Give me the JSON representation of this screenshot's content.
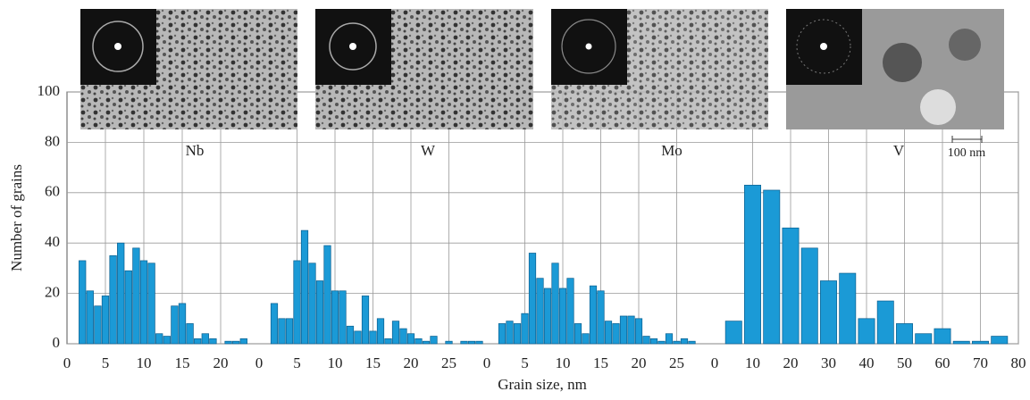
{
  "chart_data": [
    {
      "type": "histogram",
      "title": "Nb",
      "ylabel": "Number of grains",
      "xlabel": "Grain size, nm",
      "color": "#1b9ad6",
      "bins": [
        1.5,
        2.5,
        3.5,
        4.5,
        5.5,
        6.5,
        7.5,
        8.5,
        9.5,
        10.5,
        11.5,
        12.5,
        13.5,
        14.5,
        15.5,
        16.5,
        17.5,
        18.5,
        19.5,
        20.5,
        21.5,
        22.5,
        23.5
      ],
      "values": [
        33,
        21,
        15,
        19,
        35,
        40,
        29,
        38,
        33,
        32,
        4,
        3,
        15,
        16,
        8,
        2,
        4,
        2,
        0,
        1,
        1,
        2
      ],
      "xlim": [
        0,
        25
      ],
      "xticks": [
        0,
        5,
        10,
        15,
        20
      ],
      "ylim": [
        0,
        100
      ],
      "yticks": [
        0,
        20,
        40,
        60,
        80,
        100
      ],
      "grid": true
    },
    {
      "type": "histogram",
      "title": "W",
      "color": "#1b9ad6",
      "bins": [
        1.5,
        2.5,
        3.5,
        4.5,
        5.5,
        6.5,
        7.5,
        8.5,
        9.5,
        10.5,
        11.5,
        12.5,
        13.5,
        14.5,
        15.5,
        16.5,
        17.5,
        18.5,
        19.5,
        20.5,
        21.5,
        22.5,
        23.5,
        24.5,
        25.5,
        26.5,
        27.5,
        28.5,
        29.5
      ],
      "values": [
        16,
        10,
        10,
        33,
        45,
        32,
        25,
        39,
        21,
        21,
        7,
        5,
        19,
        5,
        10,
        2,
        9,
        6,
        4,
        2,
        1,
        3,
        0,
        1,
        0,
        1,
        1,
        1
      ],
      "xlim": [
        0,
        30
      ],
      "xticks": [
        0,
        5,
        10,
        15,
        20,
        25
      ],
      "ylim": [
        0,
        100
      ],
      "yticks": [
        0,
        20,
        40,
        60,
        80,
        100
      ],
      "grid": true
    },
    {
      "type": "histogram",
      "title": "Mo",
      "color": "#1b9ad6",
      "bins": [
        1.5,
        2.5,
        3.5,
        4.5,
        5.5,
        6.5,
        7.5,
        8.5,
        9.5,
        10.5,
        11.5,
        12.5,
        13.5,
        14.5,
        15.5,
        16.5,
        17.5,
        18.5,
        19.5,
        20.5,
        21.5,
        22.5,
        23.5,
        24.5,
        25.5,
        26.5,
        27.5
      ],
      "values": [
        8,
        9,
        8,
        12,
        36,
        26,
        22,
        32,
        22,
        26,
        8,
        4,
        23,
        21,
        9,
        8,
        11,
        11,
        10,
        3,
        2,
        1,
        4,
        1,
        2,
        1
      ],
      "xlim": [
        0,
        30
      ],
      "xticks": [
        0,
        5,
        10,
        15,
        20,
        25
      ],
      "ylim": [
        0,
        100
      ],
      "yticks": [
        0,
        20,
        40,
        60,
        80,
        100
      ],
      "grid": true
    },
    {
      "type": "histogram",
      "title": "V",
      "annotation": "100 nm",
      "color": "#1b9ad6",
      "bins": [
        2.5,
        7.5,
        12.5,
        17.5,
        22.5,
        27.5,
        32.5,
        37.5,
        42.5,
        47.5,
        52.5,
        57.5,
        62.5,
        67.5,
        72.5,
        77.5
      ],
      "values": [
        9,
        63,
        61,
        46,
        38,
        25,
        28,
        10,
        17,
        8,
        4,
        6,
        1,
        1,
        3
      ],
      "xlim": [
        0,
        80
      ],
      "xticks": [
        0,
        10,
        20,
        30,
        40,
        50,
        60,
        70,
        80
      ],
      "ylim": [
        0,
        100
      ],
      "yticks": [
        0,
        20,
        40,
        60,
        80,
        100
      ],
      "grid": true
    }
  ]
}
